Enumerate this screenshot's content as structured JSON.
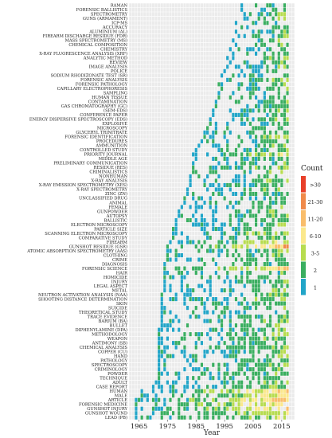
{
  "chart_data": {
    "type": "heatmap",
    "title": "",
    "xlabel": "Year",
    "ylabel": "",
    "x_range": [
      1962,
      2019
    ],
    "x_ticks": [
      1965,
      1975,
      1985,
      1995,
      2005,
      2015
    ],
    "grid": true,
    "legend": {
      "title": "Count",
      "placement": "right",
      "entries": [
        ">30",
        "21-30",
        "11-20",
        "6-10",
        "3-5",
        "2",
        "1"
      ],
      "colors": [
        "#e8402a",
        "#f08a4b",
        "#f9bd6b",
        "#fbe88c",
        "#b7dc4f",
        "#3aae60",
        "#22a5c8"
      ]
    },
    "terms": [
      {
        "name": "RAMAN",
        "start": 2001,
        "density": 0.45,
        "bias": 0.5
      },
      {
        "name": "FORENSIC BALLISTICS",
        "start": 2001,
        "density": 0.5,
        "bias": 0.4
      },
      {
        "name": "SPECTROMETRY",
        "start": 2002,
        "density": 0.55,
        "bias": 0.9
      },
      {
        "name": "GUNS (ARMAMENT)",
        "start": 2002,
        "density": 0.5,
        "bias": 0.8
      },
      {
        "name": "ICP-MS",
        "start": 1999,
        "density": 0.4,
        "bias": 0.4
      },
      {
        "name": "ACCURACY",
        "start": 2001,
        "density": 0.45,
        "bias": 0.6
      },
      {
        "name": "ALUMINIUM (AL)",
        "start": 1999,
        "density": 0.45,
        "bias": 0.5
      },
      {
        "name": "FIREARM DISCHARGE RESIDUE (FDR)",
        "start": 2000,
        "density": 0.5,
        "bias": 0.6
      },
      {
        "name": "MASS SPECTROMETRY (MS)",
        "start": 1998,
        "density": 0.5,
        "bias": 0.6
      },
      {
        "name": "CHEMICAL COMPOSITION",
        "start": 1999,
        "density": 0.45,
        "bias": 0.5
      },
      {
        "name": "CHEMISTRY",
        "start": 1997,
        "density": 0.45,
        "bias": 0.5
      },
      {
        "name": "X-RAY FLUORESCENCE ANALYSIS (XRF)",
        "start": 1998,
        "density": 0.45,
        "bias": 0.5
      },
      {
        "name": "ANALYTIC METHOD",
        "start": 1996,
        "density": 0.55,
        "bias": 0.7
      },
      {
        "name": "REVIEW",
        "start": 1997,
        "density": 0.5,
        "bias": 0.6
      },
      {
        "name": "IMAGE ANALYSIS",
        "start": 1996,
        "density": 0.5,
        "bias": 0.5
      },
      {
        "name": "POLICE",
        "start": 1995,
        "density": 0.45,
        "bias": 0.4
      },
      {
        "name": "SODIUM RHODIZONATE TEST (SR)",
        "start": 1994,
        "density": 0.4,
        "bias": 0.4
      },
      {
        "name": "FORENSIC ANALYSIS",
        "start": 1996,
        "density": 0.55,
        "bias": 0.8
      },
      {
        "name": "FORENSIC PATHOLOGY",
        "start": 1993,
        "density": 0.45,
        "bias": 0.5
      },
      {
        "name": "CAPILLARY ELECTROPHORESIS",
        "start": 1994,
        "density": 0.45,
        "bias": 0.5
      },
      {
        "name": "SAMPLING",
        "start": 1993,
        "density": 0.5,
        "bias": 0.5
      },
      {
        "name": "HUMAN TISSUE",
        "start": 1993,
        "density": 0.45,
        "bias": 0.5
      },
      {
        "name": "CONTAMINATION",
        "start": 1992,
        "density": 0.45,
        "bias": 0.5
      },
      {
        "name": "GAS CHROMATOGRAPHY (GC)",
        "start": 1992,
        "density": 0.5,
        "bias": 0.5
      },
      {
        "name": "(SEM-EDS)",
        "start": 1991,
        "density": 0.5,
        "bias": 0.6
      },
      {
        "name": "CONFERENCE PAPER",
        "start": 1991,
        "density": 0.45,
        "bias": 0.5
      },
      {
        "name": "ENERGY DISPERSIVE SPECTROSCOPY (EDS)",
        "start": 1990,
        "density": 0.5,
        "bias": 0.6
      },
      {
        "name": "EXPLOSIVE",
        "start": 1990,
        "density": 0.45,
        "bias": 0.5
      },
      {
        "name": "MICROSCOPY",
        "start": 1989,
        "density": 0.45,
        "bias": 0.5
      },
      {
        "name": "GLYCERYL TRINITRATE",
        "start": 1988,
        "density": 0.45,
        "bias": 0.4
      },
      {
        "name": "FORENSIC IDENTIFICATION",
        "start": 1988,
        "density": 0.55,
        "bias": 0.8
      },
      {
        "name": "PROCEDURES",
        "start": 1987,
        "density": 0.45,
        "bias": 0.5
      },
      {
        "name": "AMMUNITION",
        "start": 1986,
        "density": 0.5,
        "bias": 0.6
      },
      {
        "name": "CONTROLLED STUDY",
        "start": 1985,
        "density": 0.5,
        "bias": 0.6
      },
      {
        "name": "PRIORITY JOURNAL",
        "start": 1984,
        "density": 0.6,
        "bias": 0.9
      },
      {
        "name": "MIDDLE AGE",
        "start": 1985,
        "density": 0.5,
        "bias": 0.5
      },
      {
        "name": "PRELIMINARY COMMUNICATION",
        "start": 1984,
        "density": 0.45,
        "bias": 0.4
      },
      {
        "name": "RESIDUE (RES)",
        "start": 1984,
        "density": 0.55,
        "bias": 0.7
      },
      {
        "name": "CRIMINALISTICS",
        "start": 1984,
        "density": 0.5,
        "bias": 0.6
      },
      {
        "name": "NONHUMAN",
        "start": 1983,
        "density": 0.45,
        "bias": 0.5
      },
      {
        "name": "X-RAY ANALYSIS",
        "start": 1983,
        "density": 0.5,
        "bias": 0.6
      },
      {
        "name": "X-RAY EMISSION SPECTROMETRY (XES)",
        "start": 1983,
        "density": 0.45,
        "bias": 0.5
      },
      {
        "name": "X-RAY SPECTROMETRY",
        "start": 1982,
        "density": 0.5,
        "bias": 0.6
      },
      {
        "name": "ZINC (ZN)",
        "start": 1982,
        "density": 0.45,
        "bias": 0.4
      },
      {
        "name": "UNCLASSIFIED DRUG",
        "start": 1981,
        "density": 0.45,
        "bias": 0.4
      },
      {
        "name": "ANIMAL",
        "start": 1981,
        "density": 0.45,
        "bias": 0.4
      },
      {
        "name": "FEMALE",
        "start": 1980,
        "density": 0.5,
        "bias": 0.6
      },
      {
        "name": "GUNPOWDER",
        "start": 1979,
        "density": 0.5,
        "bias": 0.6
      },
      {
        "name": "AUTOPSY",
        "start": 1979,
        "density": 0.5,
        "bias": 0.5
      },
      {
        "name": "BALLISTIC",
        "start": 1978,
        "density": 0.45,
        "bias": 0.5
      },
      {
        "name": "ELECTRON MICROSCOPY",
        "start": 1978,
        "density": 0.5,
        "bias": 0.5
      },
      {
        "name": "PARTICLE SIZE",
        "start": 1977,
        "density": 0.5,
        "bias": 0.5
      },
      {
        "name": "SCANNING ELECTRON MICROSCOPY",
        "start": 1977,
        "density": 0.55,
        "bias": 0.8
      },
      {
        "name": "COMPARATIVE STUDY",
        "start": 1977,
        "density": 0.45,
        "bias": 0.5
      },
      {
        "name": "FIREARM",
        "start": 1976,
        "density": 0.6,
        "bias": 1.0
      },
      {
        "name": "GUNSHOT RESIDUE (GSR)",
        "start": 1975,
        "density": 0.75,
        "bias": 1.6
      },
      {
        "name": "ATOMIC ABSORPTION SPECTROMETRY (AAS)",
        "start": 1975,
        "density": 0.5,
        "bias": 0.5
      },
      {
        "name": "CLOTHING",
        "start": 1975,
        "density": 0.5,
        "bias": 0.5
      },
      {
        "name": "CRIME",
        "start": 1975,
        "density": 0.45,
        "bias": 0.5
      },
      {
        "name": "DIAGNOSIS",
        "start": 1974,
        "density": 0.4,
        "bias": 0.4
      },
      {
        "name": "FORENSIC SCIENCE",
        "start": 1974,
        "density": 0.7,
        "bias": 1.4
      },
      {
        "name": "HAIR",
        "start": 1974,
        "density": 0.4,
        "bias": 0.4
      },
      {
        "name": "HOMICIDE",
        "start": 1974,
        "density": 0.45,
        "bias": 0.5
      },
      {
        "name": "INJURY",
        "start": 1974,
        "density": 0.45,
        "bias": 0.5
      },
      {
        "name": "LEGAL ASPECT",
        "start": 1974,
        "density": 0.4,
        "bias": 0.4
      },
      {
        "name": "METAL",
        "start": 1974,
        "density": 0.5,
        "bias": 0.5
      },
      {
        "name": "NEUTRON ACTIVATION ANALYSIS (NAA)",
        "start": 1973,
        "density": 0.45,
        "bias": 0.5
      },
      {
        "name": "SHOOTING DISTANCE DETERMINATION",
        "start": 1973,
        "density": 0.5,
        "bias": 0.6
      },
      {
        "name": "SKIN",
        "start": 1973,
        "density": 0.45,
        "bias": 0.5
      },
      {
        "name": "SUICIDE",
        "start": 1973,
        "density": 0.45,
        "bias": 0.5
      },
      {
        "name": "THEORETICAL STUDY",
        "start": 1973,
        "density": 0.4,
        "bias": 0.4
      },
      {
        "name": "TRACE EVIDENCE",
        "start": 1973,
        "density": 0.45,
        "bias": 0.5
      },
      {
        "name": "BARIUM (BA)",
        "start": 1973,
        "density": 0.45,
        "bias": 0.5
      },
      {
        "name": "BULLET",
        "start": 1973,
        "density": 0.45,
        "bias": 0.5
      },
      {
        "name": "DIPHENYLAMINE (DPA)",
        "start": 1972,
        "density": 0.45,
        "bias": 0.5
      },
      {
        "name": "METHODOLOGY",
        "start": 1972,
        "density": 0.55,
        "bias": 0.7
      },
      {
        "name": "WEAPON",
        "start": 1972,
        "density": 0.5,
        "bias": 0.5
      },
      {
        "name": "ANTIMONY (SB)",
        "start": 1972,
        "density": 0.45,
        "bias": 0.5
      },
      {
        "name": "CHEMICAL ANALYSIS",
        "start": 1972,
        "density": 0.5,
        "bias": 0.6
      },
      {
        "name": "COPPER (CU)",
        "start": 1972,
        "density": 0.45,
        "bias": 0.5
      },
      {
        "name": "HAND",
        "start": 1972,
        "density": 0.5,
        "bias": 0.6
      },
      {
        "name": "PATHOLOGY",
        "start": 1972,
        "density": 0.45,
        "bias": 0.5
      },
      {
        "name": "SPECTROSCOPY",
        "start": 1972,
        "density": 0.45,
        "bias": 0.5
      },
      {
        "name": "CRIMINOLOGY",
        "start": 1972,
        "density": 0.45,
        "bias": 0.5
      },
      {
        "name": "POWDER",
        "start": 1972,
        "density": 0.45,
        "bias": 0.5
      },
      {
        "name": "TECHNIQUE",
        "start": 1972,
        "density": 0.45,
        "bias": 0.5
      },
      {
        "name": "ADULT",
        "start": 1971,
        "density": 0.5,
        "bias": 0.6
      },
      {
        "name": "CASE REPORT",
        "start": 1970,
        "density": 0.5,
        "bias": 0.6
      },
      {
        "name": "HUMAN",
        "start": 1966,
        "density": 0.7,
        "bias": 1.3
      },
      {
        "name": "MALE",
        "start": 1966,
        "density": 0.65,
        "bias": 1.1
      },
      {
        "name": "ARTICLE",
        "start": 1964,
        "density": 0.7,
        "bias": 1.4
      },
      {
        "name": "FORENSIC MEDICINE",
        "start": 1964,
        "density": 0.7,
        "bias": 1.3
      },
      {
        "name": "GUNSHOT INJURY",
        "start": 1964,
        "density": 0.65,
        "bias": 1.2
      },
      {
        "name": "GUNSHOT WOUND",
        "start": 1964,
        "density": 0.6,
        "bias": 1.0
      },
      {
        "name": "LEAD (PB)",
        "start": 1964,
        "density": 0.55,
        "bias": 0.8
      }
    ]
  }
}
